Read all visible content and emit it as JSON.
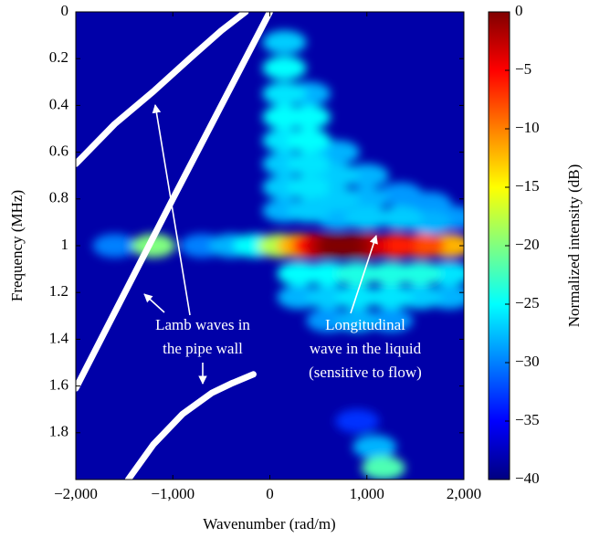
{
  "chart_data": {
    "type": "heatmap",
    "xlabel": "Wavenumber (rad/m)",
    "ylabel": "Frequency (MHz)",
    "colorbar_label": "Normalized intensity (dB)",
    "xlim": [
      -2000,
      2000
    ],
    "xticks": [
      {
        "value": -2000,
        "label": "−2,000"
      },
      {
        "value": -1000,
        "label": "−1,000"
      },
      0,
      {
        "value": 1000,
        "label": "1,000"
      },
      {
        "value": 2000,
        "label": "2,000"
      }
    ],
    "ylim": [
      0,
      2
    ],
    "y_inverted": true,
    "yticks": [
      0,
      0.2,
      0.4,
      0.6,
      0.8,
      1,
      1.2,
      1.4,
      1.6,
      1.8
    ],
    "clim": [
      -40,
      0
    ],
    "cticks": [
      0,
      {
        "value": -5,
        "label": "−5"
      },
      {
        "value": -10,
        "label": "−10"
      },
      {
        "value": -15,
        "label": "−15"
      },
      {
        "value": -20,
        "label": "−20"
      },
      {
        "value": -25,
        "label": "−25"
      },
      {
        "value": -30,
        "label": "−30"
      },
      {
        "value": -35,
        "label": "−35"
      },
      {
        "value": -40,
        "label": "−40"
      }
    ],
    "colormap": "jet",
    "blobs": [
      {
        "x": 900,
        "y": 1.75,
        "value": -33
      },
      {
        "x": -1600,
        "y": 1.0,
        "value": -30
      },
      {
        "x": -700,
        "y": 1.0,
        "value": -30
      },
      {
        "x": 1900,
        "y": 0.88,
        "value": -29
      },
      {
        "x": 1650,
        "y": 0.82,
        "value": -29
      },
      {
        "x": 1350,
        "y": 0.78,
        "value": -29
      },
      {
        "x": 600,
        "y": 1.32,
        "value": -29
      },
      {
        "x": 1250,
        "y": 1.32,
        "value": -29
      },
      {
        "x": 400,
        "y": 0.35,
        "value": -28
      },
      {
        "x": 700,
        "y": 0.6,
        "value": -28
      },
      {
        "x": 1000,
        "y": 0.7,
        "value": -28
      },
      {
        "x": 1000,
        "y": 0.8,
        "value": -28
      },
      {
        "x": 150,
        "y": 0.85,
        "value": -28
      },
      {
        "x": 700,
        "y": 0.88,
        "value": -28
      },
      {
        "x": 1650,
        "y": 0.9,
        "value": -28
      },
      {
        "x": 300,
        "y": 1.22,
        "value": -28
      },
      {
        "x": 900,
        "y": 1.32,
        "value": -28
      },
      {
        "x": 1850,
        "y": 1.22,
        "value": -28
      },
      {
        "x": 1080,
        "y": 1.86,
        "value": -28
      },
      {
        "x": -400,
        "y": 1.0,
        "value": -28
      },
      {
        "x": 150,
        "y": 0.13,
        "value": -27
      },
      {
        "x": 150,
        "y": 0.65,
        "value": -27
      },
      {
        "x": 150,
        "y": 0.75,
        "value": -27
      },
      {
        "x": 700,
        "y": 0.7,
        "value": -27
      },
      {
        "x": 700,
        "y": 0.8,
        "value": -27
      },
      {
        "x": 400,
        "y": 0.85,
        "value": -27
      },
      {
        "x": 1000,
        "y": 0.88,
        "value": -27
      },
      {
        "x": 1350,
        "y": 0.88,
        "value": -27
      },
      {
        "x": 600,
        "y": 1.22,
        "value": -27
      },
      {
        "x": 1550,
        "y": 1.22,
        "value": -27
      },
      {
        "x": 150,
        "y": 0.35,
        "value": -26
      },
      {
        "x": 150,
        "y": 0.55,
        "value": -26
      },
      {
        "x": 400,
        "y": 0.65,
        "value": -26
      },
      {
        "x": 400,
        "y": 0.75,
        "value": -26
      },
      {
        "x": 900,
        "y": 1.22,
        "value": -26
      },
      {
        "x": 1250,
        "y": 1.22,
        "value": -26
      },
      {
        "x": 1850,
        "y": 1.12,
        "value": -26
      },
      {
        "x": 150,
        "y": 0.24,
        "value": -25
      },
      {
        "x": 150,
        "y": 0.45,
        "value": -25
      },
      {
        "x": 400,
        "y": 0.45,
        "value": -25
      },
      {
        "x": 400,
        "y": 0.55,
        "value": -25
      },
      {
        "x": 300,
        "y": 1.12,
        "value": -25
      },
      {
        "x": 600,
        "y": 1.12,
        "value": -25
      },
      {
        "x": -150,
        "y": 1.0,
        "value": -25
      },
      {
        "x": 900,
        "y": 1.12,
        "value": -24
      },
      {
        "x": 1250,
        "y": 1.12,
        "value": -24
      },
      {
        "x": 1550,
        "y": 1.12,
        "value": -24
      },
      {
        "x": 1170,
        "y": 1.95,
        "value": -22
      },
      {
        "x": -1200,
        "y": 1.0,
        "value": -20
      },
      {
        "x": 100,
        "y": 1.0,
        "value": -18
      },
      {
        "x": 300,
        "y": 1.0,
        "value": -12
      },
      {
        "x": 1850,
        "y": 1.0,
        "value": -12
      },
      {
        "x": 1580,
        "y": 1.0,
        "value": -8
      },
      {
        "x": 1300,
        "y": 1.0,
        "value": -6
      },
      {
        "x": 450,
        "y": 1.0,
        "value": -5
      },
      {
        "x": 1000,
        "y": 1.0,
        "value": -4
      },
      {
        "x": 600,
        "y": 1.0,
        "value": -2
      },
      {
        "x": 850,
        "y": 1.0,
        "value": -1
      },
      {
        "x": 720,
        "y": 1.0,
        "value": 0
      }
    ],
    "lines": [
      {
        "color": "#ffffff",
        "x": [
          -2000,
          -1600,
          -1200,
          -800,
          -500,
          -250
        ],
        "y": [
          0.65,
          0.48,
          0.34,
          0.19,
          0.08,
          0.0
        ]
      },
      {
        "color": "#ffffff",
        "x": [
          -2000,
          -1000,
          0
        ],
        "y": [
          1.61,
          0.8,
          0.0
        ]
      },
      {
        "color": "#ffffff",
        "x": [
          -1460,
          -1200,
          -900,
          -600,
          -400,
          -170
        ],
        "y": [
          2.0,
          1.85,
          1.72,
          1.63,
          1.59,
          1.55
        ]
      }
    ],
    "annotations": [
      {
        "lines": [
          "Lamb waves in",
          "the pipe wall"
        ]
      },
      {
        "lines": [
          "Longitudinal",
          "wave in the liquid",
          "(sensitive to flow)"
        ]
      }
    ]
  }
}
